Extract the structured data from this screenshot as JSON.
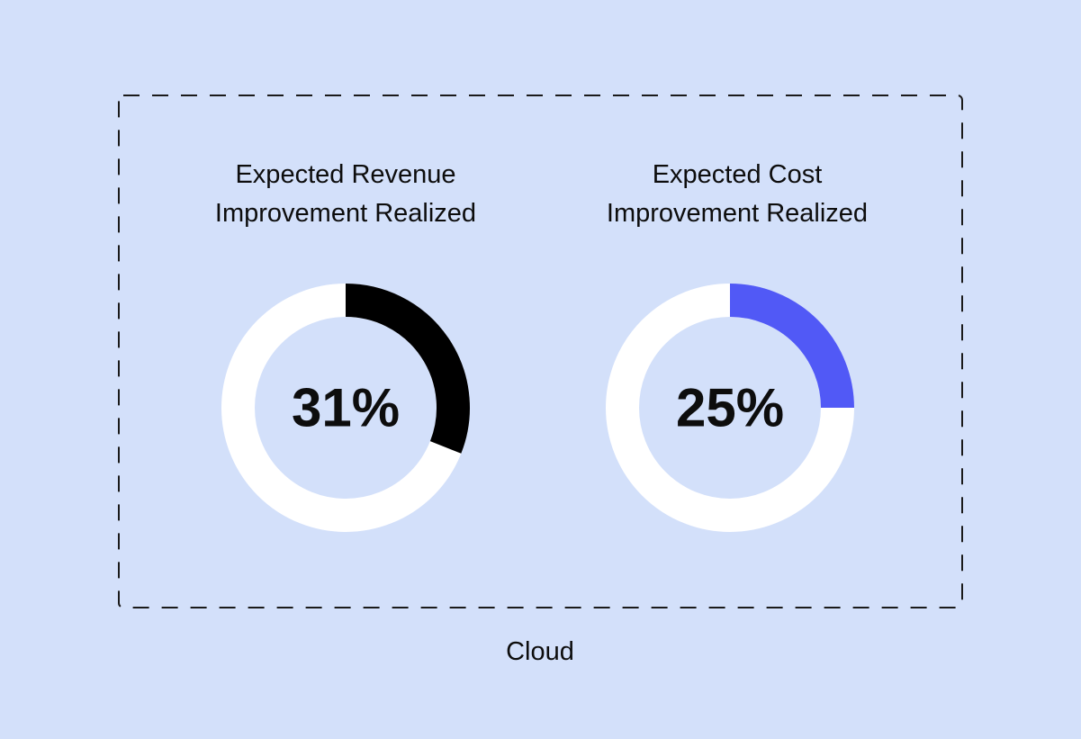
{
  "chart_data": {
    "type": "pie",
    "group_label": "Cloud",
    "charts": [
      {
        "title_lines": [
          "Expected Revenue",
          "Improvement Realized"
        ],
        "value": 31,
        "value_label": "31%",
        "color": "#000000",
        "track_color": "#ffffff"
      },
      {
        "title_lines": [
          "Expected Cost",
          "Improvement Realized"
        ],
        "value": 25,
        "value_label": "25%",
        "color": "#5159f6",
        "track_color": "#ffffff"
      }
    ]
  },
  "colors": {
    "background": "#d3e0fa",
    "frame_border": "#1a1a1a",
    "text": "#0d0d0d"
  }
}
